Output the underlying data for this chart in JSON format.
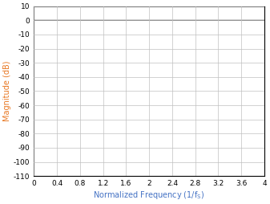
{
  "ylabel": "Magnitude (dB)",
  "xlim": [
    0,
    4
  ],
  "ylim": [
    -110,
    10
  ],
  "xticks": [
    0,
    0.4,
    0.8,
    1.2,
    1.6,
    2.0,
    2.4,
    2.8,
    3.2,
    3.6,
    4.0
  ],
  "xtick_labels": [
    "0",
    "0.4",
    "0.8",
    "1.2",
    "1.6",
    "2",
    "2.4",
    "2.8",
    "3.2",
    "3.6",
    "4"
  ],
  "yticks": [
    10,
    0,
    -10,
    -20,
    -30,
    -40,
    -50,
    -60,
    -70,
    -80,
    -90,
    -100,
    -110
  ],
  "line_color": "#000000",
  "background_color": "#ffffff",
  "grid_color": "#c0c0c0",
  "axis_label_color": "#e87722",
  "xlabel_color": "#4472c4",
  "figsize": [
    3.37,
    2.54
  ],
  "dpi": 100
}
